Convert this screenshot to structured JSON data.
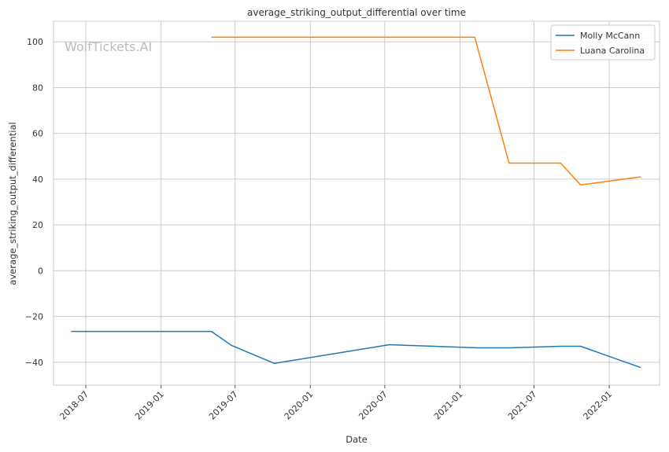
{
  "chart_data": {
    "type": "line",
    "title": "average_striking_output_differential over time",
    "xlabel": "Date",
    "ylabel": "average_striking_output_differential",
    "watermark": "WolfTickets.AI",
    "x_ticks": [
      "2018-07",
      "2019-01",
      "2019-07",
      "2020-01",
      "2020-07",
      "2021-01",
      "2021-07",
      "2022-01"
    ],
    "y_ticks": [
      -40,
      -20,
      0,
      20,
      40,
      60,
      80,
      100
    ],
    "xlim": [
      "2018-04-13",
      "2022-05-04"
    ],
    "ylim": [
      -50,
      109
    ],
    "grid": true,
    "legend_position": "top-right",
    "series": [
      {
        "name": "Molly McCann",
        "color": "#1f77b4",
        "points": [
          {
            "x": "2018-05-26",
            "y": -26.5
          },
          {
            "x": "2019-05-04",
            "y": -26.5
          },
          {
            "x": "2019-06-22",
            "y": -32.6
          },
          {
            "x": "2019-10-05",
            "y": -40.5
          },
          {
            "x": "2020-07-12",
            "y": -32.3
          },
          {
            "x": "2021-02-15",
            "y": -33.7
          },
          {
            "x": "2021-05-01",
            "y": -33.7
          },
          {
            "x": "2021-09-04",
            "y": -33.0
          },
          {
            "x": "2021-10-23",
            "y": -33.0
          },
          {
            "x": "2022-03-19",
            "y": -42.3
          }
        ]
      },
      {
        "name": "Luana Carolina",
        "color": "#ff7f0e",
        "points": [
          {
            "x": "2019-05-04",
            "y": 102
          },
          {
            "x": "2021-02-06",
            "y": 102
          },
          {
            "x": "2021-05-01",
            "y": 47
          },
          {
            "x": "2021-09-04",
            "y": 47
          },
          {
            "x": "2021-10-23",
            "y": 37.5
          },
          {
            "x": "2022-03-19",
            "y": 41
          }
        ]
      }
    ]
  }
}
